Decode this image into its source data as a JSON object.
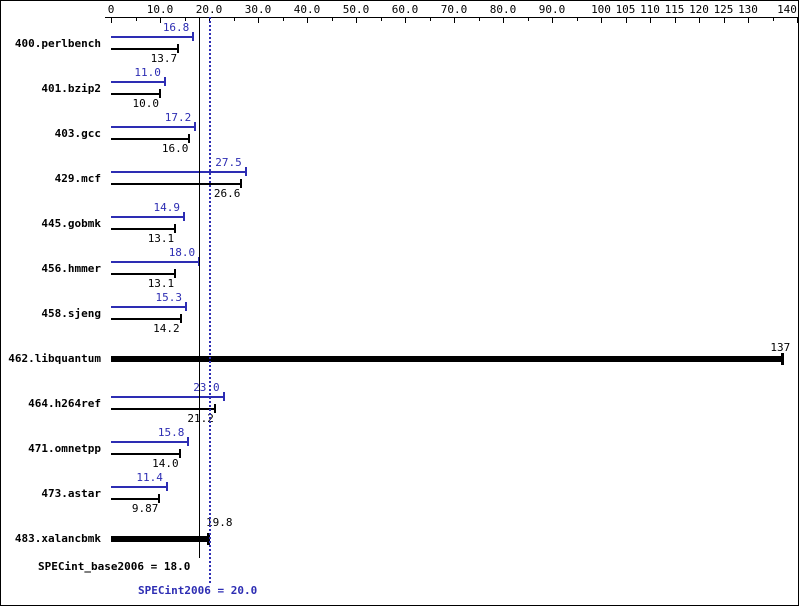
{
  "chart_data": {
    "type": "bar",
    "orientation": "horizontal",
    "grid": false,
    "colors": {
      "peak": "#2d2db3",
      "base": "#000000"
    },
    "axis": {
      "min": 0,
      "max": 140,
      "ticks": [
        {
          "v": 0,
          "label": "0"
        },
        {
          "v": 10,
          "label": "10.0"
        },
        {
          "v": 20,
          "label": "20.0"
        },
        {
          "v": 30,
          "label": "30.0"
        },
        {
          "v": 40,
          "label": "40.0"
        },
        {
          "v": 50,
          "label": "50.0"
        },
        {
          "v": 60,
          "label": "60.0"
        },
        {
          "v": 70,
          "label": "70.0"
        },
        {
          "v": 80,
          "label": "80.0"
        },
        {
          "v": 90,
          "label": "90.0"
        },
        {
          "v": 100,
          "label": "100"
        },
        {
          "v": 105,
          "label": "105"
        },
        {
          "v": 110,
          "label": "110"
        },
        {
          "v": 115,
          "label": "115"
        },
        {
          "v": 120,
          "label": "120"
        },
        {
          "v": 125,
          "label": "125"
        },
        {
          "v": 130,
          "label": "130"
        },
        {
          "v": 140,
          "label": "140"
        }
      ]
    },
    "benchmarks": [
      {
        "name": "400.perlbench",
        "type": "pair",
        "peak": 16.8,
        "peak_label": "16.8",
        "base": 13.7,
        "base_label": "13.7"
      },
      {
        "name": "401.bzip2",
        "type": "pair",
        "peak": 11.0,
        "peak_label": "11.0",
        "base": 10.0,
        "base_label": "10.0"
      },
      {
        "name": "403.gcc",
        "type": "pair",
        "peak": 17.2,
        "peak_label": "17.2",
        "base": 16.0,
        "base_label": "16.0"
      },
      {
        "name": "429.mcf",
        "type": "pair",
        "peak": 27.5,
        "peak_label": "27.5",
        "base": 26.6,
        "base_label": "26.6"
      },
      {
        "name": "445.gobmk",
        "type": "pair",
        "peak": 14.9,
        "peak_label": "14.9",
        "base": 13.1,
        "base_label": "13.1"
      },
      {
        "name": "456.hmmer",
        "type": "pair",
        "peak": 18.0,
        "peak_label": "18.0",
        "base": 13.1,
        "base_label": "13.1"
      },
      {
        "name": "458.sjeng",
        "type": "pair",
        "peak": 15.3,
        "peak_label": "15.3",
        "base": 14.2,
        "base_label": "14.2"
      },
      {
        "name": "462.libquantum",
        "type": "single",
        "value": 137,
        "value_label": "137",
        "label_align": "right"
      },
      {
        "name": "464.h264ref",
        "type": "pair",
        "peak": 23.0,
        "peak_label": "23.0",
        "base": 21.2,
        "base_label": "21.2"
      },
      {
        "name": "471.omnetpp",
        "type": "pair",
        "peak": 15.8,
        "peak_label": "15.8",
        "base": 14.0,
        "base_label": "14.0"
      },
      {
        "name": "473.astar",
        "type": "pair",
        "peak": 11.4,
        "peak_label": "11.4",
        "base": 9.87,
        "base_label": "9.87"
      },
      {
        "name": "483.xalancbmk",
        "type": "single",
        "value": 19.8,
        "value_label": "19.8",
        "label_align": "left"
      }
    ],
    "means": {
      "base_label": "SPECint_base2006 = 18.0",
      "base_value": 18.0,
      "peak_label": "SPECint2006 = 20.0",
      "peak_value": 20.0
    }
  }
}
